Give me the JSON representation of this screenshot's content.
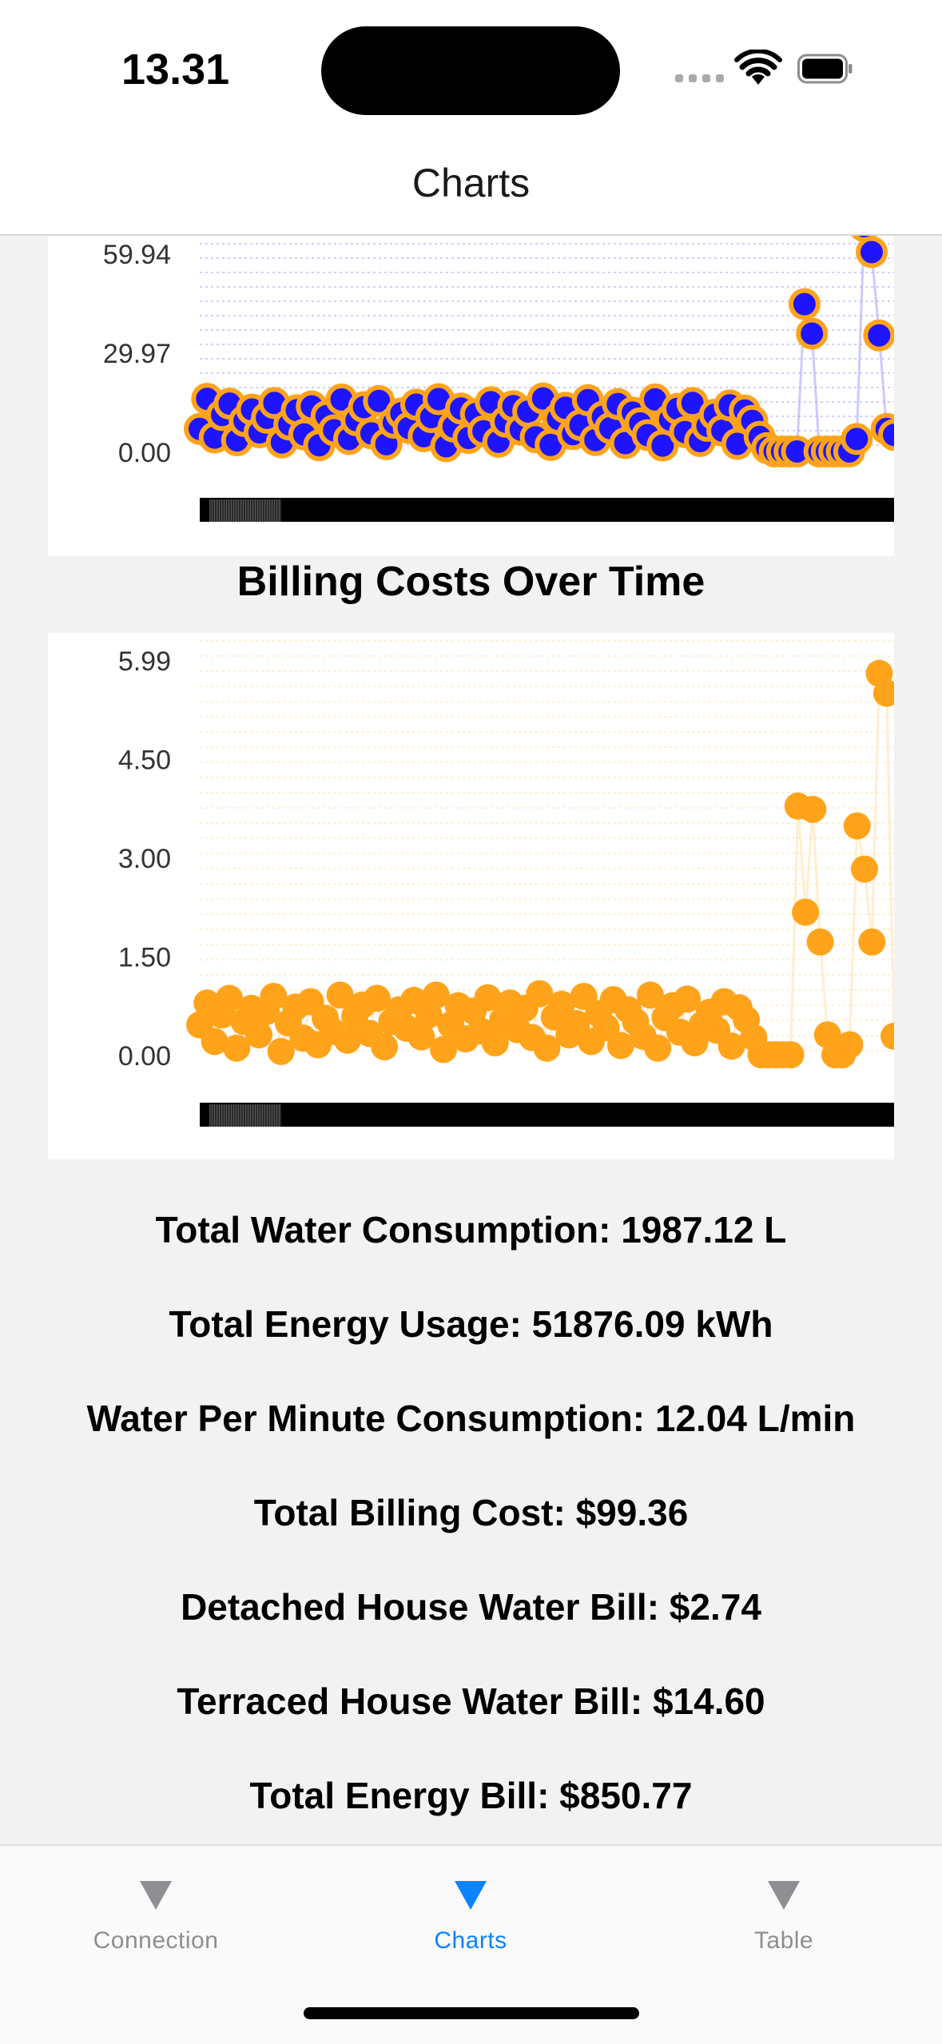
{
  "status_bar": {
    "time": "13.31"
  },
  "nav": {
    "title": "Charts"
  },
  "charts": {
    "chart_data": [
      {
        "type": "scatter",
        "title": "",
        "yticks": [
          "59.94",
          "29.97",
          "0.00"
        ],
        "ylim": [
          0,
          65
        ],
        "grid": true,
        "point_color": "#1f14ff",
        "stroke_color": "#ffa31a",
        "line_color": "#a8a8ff",
        "series": [
          {
            "values": [
              6.5,
              15.2,
              4.0,
              10.5,
              13.8,
              3.2,
              8.8,
              12.1,
              5.5,
              9.7,
              14.0,
              2.6,
              7.8,
              11.9,
              4.9,
              13.0,
              1.8,
              10.2,
              6.1,
              15.0,
              3.6,
              9.0,
              12.8,
              5.2,
              14.6,
              2.1,
              8.3,
              11.0,
              6.8,
              13.5,
              4.4,
              9.9,
              15.1,
              1.5,
              7.2,
              12.4,
              3.9,
              10.8,
              5.8,
              14.2,
              2.8,
              8.6,
              13.1,
              6.3,
              11.5,
              4.1,
              15.3,
              1.9,
              9.4,
              12.6,
              5.0,
              7.6,
              14.8,
              3.3,
              10.0,
              6.7,
              13.7,
              2.4,
              11.2,
              8.1,
              4.7,
              15.0,
              1.7,
              9.2,
              12.3,
              5.6,
              14.0,
              3.0,
              7.4,
              10.6,
              6.0,
              13.3,
              2.2,
              11.8,
              8.8,
              4.2,
              1.0,
              0.0,
              0.0,
              0.0,
              0.0,
              42.5,
              34.0,
              0.0,
              0.0,
              0.0,
              0.0,
              0.0,
              3.6,
              65.0,
              57.5,
              33.5,
              6.5,
              4.8
            ]
          }
        ]
      },
      {
        "type": "scatter",
        "title": "Billing Costs Over Time",
        "yticks": [
          "5.99",
          "4.50",
          "3.00",
          "1.50",
          "0.00"
        ],
        "ylim": [
          0,
          6
        ],
        "grid": true,
        "point_color": "#ffa31a",
        "line_color": "#ffe2b0",
        "series": [
          {
            "values": [
              0.45,
              0.78,
              0.2,
              0.6,
              0.85,
              0.1,
              0.5,
              0.7,
              0.3,
              0.65,
              0.88,
              0.05,
              0.48,
              0.72,
              0.25,
              0.8,
              0.15,
              0.55,
              0.35,
              0.9,
              0.22,
              0.58,
              0.75,
              0.32,
              0.85,
              0.12,
              0.5,
              0.68,
              0.4,
              0.82,
              0.27,
              0.6,
              0.9,
              0.08,
              0.45,
              0.74,
              0.24,
              0.66,
              0.36,
              0.86,
              0.18,
              0.52,
              0.78,
              0.38,
              0.7,
              0.26,
              0.92,
              0.1,
              0.57,
              0.76,
              0.3,
              0.47,
              0.88,
              0.2,
              0.62,
              0.41,
              0.83,
              0.14,
              0.68,
              0.5,
              0.28,
              0.9,
              0.1,
              0.56,
              0.74,
              0.34,
              0.84,
              0.18,
              0.45,
              0.64,
              0.37,
              0.8,
              0.13,
              0.71,
              0.53,
              0.26,
              0.0,
              0.0,
              0.0,
              0.0,
              0.0,
              3.75,
              2.15,
              3.7,
              1.7,
              0.3,
              0.0,
              0.0,
              0.15,
              3.45,
              2.8,
              1.7,
              5.75,
              5.45,
              0.28
            ]
          }
        ]
      }
    ]
  },
  "stats": {
    "water_consumption": "Total Water Consumption: 1987.12 L",
    "energy_usage": "Total Energy Usage: 51876.09 kWh",
    "water_per_minute": "Water Per Minute Consumption: 12.04 L/min",
    "billing_cost": "Total Billing Cost: $99.36",
    "detached_bill": "Detached House Water Bill: $2.74",
    "terraced_bill": "Terraced House Water Bill: $14.60",
    "energy_bill": "Total Energy Bill: $850.77"
  },
  "tabs": [
    {
      "label": "Connection",
      "icon": "triangle-down-icon",
      "active": false
    },
    {
      "label": "Charts",
      "icon": "triangle-down-icon",
      "active": true
    },
    {
      "label": "Table",
      "icon": "triangle-down-icon",
      "active": false
    }
  ],
  "colors": {
    "accent": "#0a84ff",
    "inactive": "#8e8e93"
  }
}
